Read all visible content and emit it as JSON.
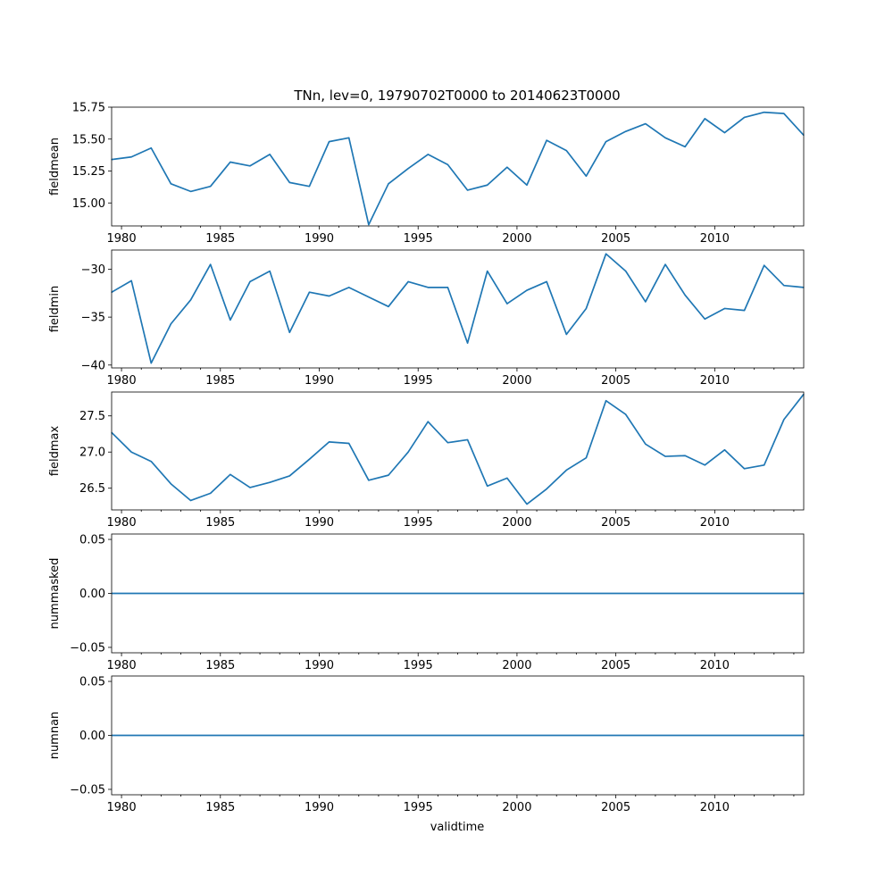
{
  "figure": {
    "title": "TNn, lev=0, 19790702T0000 to 20140623T0000",
    "xlabel": "validtime"
  },
  "colors": {
    "line": "#1f77b4",
    "frame": "#000000"
  },
  "chart_data": [
    {
      "type": "line",
      "name": "fieldmean",
      "ylabel": "fieldmean",
      "xlim": [
        1979.5,
        2014.5
      ],
      "ylim": [
        14.82,
        15.75
      ],
      "xticks": [
        1980,
        1985,
        1990,
        1995,
        2000,
        2005,
        2010
      ],
      "xtick_labels": [
        "1980",
        "1985",
        "1990",
        "1995",
        "2000",
        "2005",
        "2010"
      ],
      "yticks": [
        15.0,
        15.25,
        15.5,
        15.75
      ],
      "ytick_labels": [
        "15.00",
        "15.25",
        "15.50",
        "15.75"
      ],
      "x": [
        1979.5,
        1980.5,
        1981.5,
        1982.5,
        1983.5,
        1984.5,
        1985.5,
        1986.5,
        1987.5,
        1988.5,
        1989.5,
        1990.5,
        1991.5,
        1992.5,
        1993.5,
        1994.5,
        1995.5,
        1996.5,
        1997.5,
        1998.5,
        1999.5,
        2000.5,
        2001.5,
        2002.5,
        2003.5,
        2004.5,
        2005.5,
        2006.5,
        2007.5,
        2008.5,
        2009.5,
        2010.5,
        2011.5,
        2012.5,
        2013.5,
        2014.5
      ],
      "y": [
        15.34,
        15.36,
        15.43,
        15.15,
        15.09,
        15.13,
        15.32,
        15.29,
        15.38,
        15.16,
        15.13,
        15.48,
        15.51,
        14.83,
        15.15,
        15.27,
        15.38,
        15.3,
        15.1,
        15.14,
        15.28,
        15.14,
        15.49,
        15.41,
        15.21,
        15.48,
        15.56,
        15.62,
        15.51,
        15.44,
        15.66,
        15.55,
        15.67,
        15.71,
        15.7,
        15.53
      ]
    },
    {
      "type": "line",
      "name": "fieldmin",
      "ylabel": "fieldmin",
      "xlim": [
        1979.5,
        2014.5
      ],
      "ylim": [
        -40.3,
        -28.0
      ],
      "xticks": [
        1980,
        1985,
        1990,
        1995,
        2000,
        2005,
        2010
      ],
      "xtick_labels": [
        "1980",
        "1985",
        "1990",
        "1995",
        "2000",
        "2005",
        "2010"
      ],
      "yticks": [
        -30,
        -35,
        -40
      ],
      "ytick_labels": [
        "−30",
        "−35",
        "−40"
      ],
      "x": [
        1979.5,
        1980.5,
        1981.5,
        1982.5,
        1983.5,
        1984.5,
        1985.5,
        1986.5,
        1987.5,
        1988.5,
        1989.5,
        1990.5,
        1991.5,
        1992.5,
        1993.5,
        1994.5,
        1995.5,
        1996.5,
        1997.5,
        1998.5,
        1999.5,
        2000.5,
        2001.5,
        2002.5,
        2003.5,
        2004.5,
        2005.5,
        2006.5,
        2007.5,
        2008.5,
        2009.5,
        2010.5,
        2011.5,
        2012.5,
        2013.5,
        2014.5
      ],
      "y": [
        -32.4,
        -31.2,
        -39.8,
        -35.7,
        -33.2,
        -29.5,
        -35.3,
        -31.3,
        -30.2,
        -36.6,
        -32.4,
        -32.8,
        -31.9,
        -32.9,
        -33.9,
        -31.3,
        -31.9,
        -31.9,
        -37.7,
        -30.2,
        -33.6,
        -32.2,
        -31.3,
        -36.8,
        -34.1,
        -28.4,
        -30.2,
        -33.4,
        -29.5,
        -32.7,
        -35.2,
        -34.1,
        -34.3,
        -29.6,
        -31.7,
        -31.9
      ]
    },
    {
      "type": "line",
      "name": "fieldmax",
      "ylabel": "fieldmax",
      "xlim": [
        1979.5,
        2014.5
      ],
      "ylim": [
        26.2,
        27.83
      ],
      "xticks": [
        1980,
        1985,
        1990,
        1995,
        2000,
        2005,
        2010
      ],
      "xtick_labels": [
        "1980",
        "1985",
        "1990",
        "1995",
        "2000",
        "2005",
        "2010"
      ],
      "yticks": [
        26.5,
        27.0,
        27.5
      ],
      "ytick_labels": [
        "26.5",
        "27.0",
        "27.5"
      ],
      "x": [
        1979.5,
        1980.5,
        1981.5,
        1982.5,
        1983.5,
        1984.5,
        1985.5,
        1986.5,
        1987.5,
        1988.5,
        1989.5,
        1990.5,
        1991.5,
        1992.5,
        1993.5,
        1994.5,
        1995.5,
        1996.5,
        1997.5,
        1998.5,
        1999.5,
        2000.5,
        2001.5,
        2002.5,
        2003.5,
        2004.5,
        2005.5,
        2006.5,
        2007.5,
        2008.5,
        2009.5,
        2010.5,
        2011.5,
        2012.5,
        2013.5,
        2014.5
      ],
      "y": [
        27.27,
        27.0,
        26.87,
        26.56,
        26.33,
        26.43,
        26.69,
        26.51,
        26.58,
        26.67,
        26.9,
        27.14,
        27.12,
        26.61,
        26.68,
        27.0,
        27.42,
        27.13,
        27.17,
        26.53,
        26.64,
        26.28,
        26.49,
        26.75,
        26.92,
        27.71,
        27.52,
        27.11,
        26.94,
        26.95,
        26.82,
        27.03,
        26.77,
        26.82,
        27.45,
        27.8
      ]
    },
    {
      "type": "line",
      "name": "nummasked",
      "ylabel": "nummasked",
      "xlim": [
        1979.5,
        2014.5
      ],
      "ylim": [
        -0.055,
        0.055
      ],
      "xticks": [
        1980,
        1985,
        1990,
        1995,
        2000,
        2005,
        2010
      ],
      "xtick_labels": [
        "1980",
        "1985",
        "1990",
        "1995",
        "2000",
        "2005",
        "2010"
      ],
      "yticks": [
        0.05,
        0.0,
        -0.05
      ],
      "ytick_labels": [
        "0.05",
        "0.00",
        "−0.05"
      ],
      "x": [
        1979.5,
        2014.5
      ],
      "y": [
        0,
        0
      ]
    },
    {
      "type": "line",
      "name": "numnan",
      "ylabel": "numnan",
      "xlim": [
        1979.5,
        2014.5
      ],
      "ylim": [
        -0.055,
        0.055
      ],
      "xticks": [
        1980,
        1985,
        1990,
        1995,
        2000,
        2005,
        2010
      ],
      "xtick_labels": [
        "1980",
        "1985",
        "1990",
        "1995",
        "2000",
        "2005",
        "2010"
      ],
      "yticks": [
        0.05,
        0.0,
        -0.05
      ],
      "ytick_labels": [
        "0.05",
        "0.00",
        "−0.05"
      ],
      "x": [
        1979.5,
        2014.5
      ],
      "y": [
        0,
        0
      ]
    }
  ]
}
